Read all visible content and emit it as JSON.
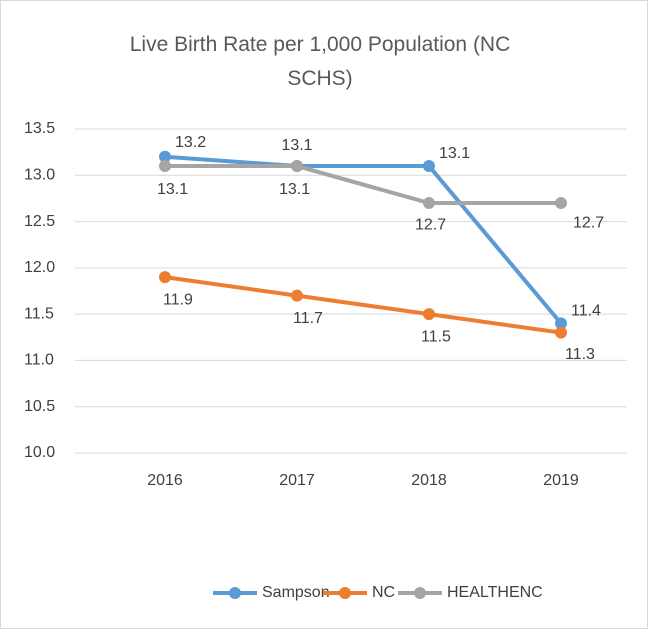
{
  "chart_data": {
    "type": "line",
    "title": "Live Birth Rate per 1,000 Population (NC SCHS)",
    "categories": [
      "2016",
      "2017",
      "2018",
      "2019"
    ],
    "series": [
      {
        "name": "Sampson",
        "color": "#5b9bd5",
        "values": [
          13.2,
          13.1,
          13.1,
          11.4
        ]
      },
      {
        "name": "NC",
        "color": "#ed7d31",
        "values": [
          11.9,
          11.7,
          11.5,
          11.3
        ]
      },
      {
        "name": "HEALTHENC",
        "color": "#a5a5a5",
        "values": [
          13.1,
          13.1,
          12.7,
          12.7
        ]
      }
    ],
    "ylim": [
      10,
      13.5
    ],
    "yticks": [
      {
        "value": 10,
        "label": "10.0"
      },
      10.5,
      {
        "value": 11,
        "label": "11.0"
      },
      11.5,
      {
        "value": 12,
        "label": "12.0"
      },
      12.5,
      {
        "value": 13,
        "label": "13.0"
      },
      13.5
    ],
    "grid": true,
    "legend": "bottom"
  }
}
